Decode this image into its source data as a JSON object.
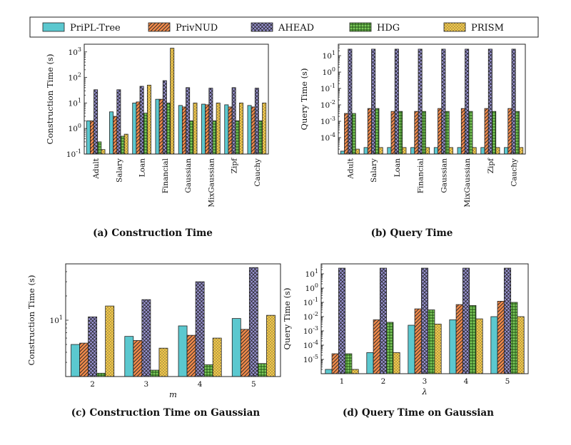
{
  "legend": [
    {
      "name": "PriPL-Tree",
      "color": "#5bc8cf",
      "pattern": "solid"
    },
    {
      "name": "PrivNUD",
      "color": "#f08a4b",
      "pattern": "diagonal"
    },
    {
      "name": "AHEAD",
      "color": "#9a94d4",
      "pattern": "cross"
    },
    {
      "name": "HDG",
      "color": "#7ccb5a",
      "pattern": "grid"
    },
    {
      "name": "PRISM",
      "color": "#f2c94c",
      "pattern": "dots"
    }
  ],
  "chart_data": [
    {
      "type": "bar",
      "caption": "(a) Construction Time",
      "ylabel": "Construction Time (s)",
      "xlabel": "",
      "yscale": "log",
      "ylim": [
        0.1,
        2000
      ],
      "yticks": [
        "10^-1",
        "10^0",
        "10^1",
        "10^2",
        "10^3"
      ],
      "categories": [
        "Adult",
        "Salary",
        "Loan",
        "Financial",
        "Gaussian",
        "MixGaussian",
        "Zipf",
        "Cauchy"
      ],
      "series": [
        {
          "name": "PriPL-Tree",
          "values": [
            2.0,
            4.5,
            10.0,
            14.0,
            8.0,
            9.0,
            8.5,
            8.0
          ]
        },
        {
          "name": "PrivNUD",
          "values": [
            2.0,
            3.0,
            11.0,
            14.0,
            7.0,
            8.5,
            7.0,
            7.0
          ]
        },
        {
          "name": "AHEAD",
          "values": [
            33,
            33,
            45,
            75,
            40,
            38,
            40,
            38
          ]
        },
        {
          "name": "HDG",
          "values": [
            0.3,
            0.5,
            4.0,
            10.0,
            2.0,
            2.0,
            2.0,
            2.0
          ]
        },
        {
          "name": "PRISM",
          "values": [
            0.15,
            0.6,
            50,
            1400,
            10,
            10,
            10,
            10
          ]
        }
      ]
    },
    {
      "type": "bar",
      "caption": "(b) Query Time",
      "ylabel": "Query Time (s)",
      "xlabel": "",
      "yscale": "log",
      "ylim": [
        1e-05,
        50
      ],
      "yticks": [
        "10^-4",
        "10^-3",
        "10^-2",
        "10^-1",
        "10^0",
        "10^1"
      ],
      "categories": [
        "Adult",
        "Salary",
        "Loan",
        "Financial",
        "Gaussian",
        "MixGaussian",
        "Zipf",
        "Cauchy"
      ],
      "series": [
        {
          "name": "PriPL-Tree",
          "values": [
            1.5e-05,
            2.5e-05,
            2.5e-05,
            2.5e-05,
            2.5e-05,
            2.5e-05,
            2.5e-05,
            2.5e-05
          ]
        },
        {
          "name": "PrivNUD",
          "values": [
            0.003,
            0.006,
            0.004,
            0.004,
            0.006,
            0.006,
            0.006,
            0.006
          ]
        },
        {
          "name": "AHEAD",
          "values": [
            25,
            25,
            25,
            25,
            25,
            25,
            25,
            25
          ]
        },
        {
          "name": "HDG",
          "values": [
            0.003,
            0.006,
            0.004,
            0.004,
            0.004,
            0.004,
            0.004,
            0.004
          ]
        },
        {
          "name": "PRISM",
          "values": [
            2e-05,
            2.5e-05,
            2.5e-05,
            2.5e-05,
            2.5e-05,
            2.5e-05,
            2.5e-05,
            2.5e-05
          ]
        }
      ]
    },
    {
      "type": "bar",
      "caption": "(c) Construction Time on Gaussian",
      "ylabel": "Construction Time (s)",
      "xlabel": "m",
      "yscale": "log",
      "ylim": [
        2.0,
        50
      ],
      "yticks": [
        "10^1"
      ],
      "categories": [
        "2",
        "3",
        "4",
        "5"
      ],
      "series": [
        {
          "name": "PriPL-Tree",
          "values": [
            5.0,
            6.3,
            8.5,
            10.5
          ]
        },
        {
          "name": "PrivNUD",
          "values": [
            5.2,
            5.6,
            6.5,
            7.7
          ]
        },
        {
          "name": "AHEAD",
          "values": [
            11.0,
            18.0,
            30.0,
            45.0
          ]
        },
        {
          "name": "HDG",
          "values": [
            2.2,
            2.4,
            2.8,
            2.9
          ]
        },
        {
          "name": "PRISM",
          "values": [
            15.0,
            4.5,
            6.0,
            11.5
          ]
        }
      ]
    },
    {
      "type": "bar",
      "caption": "(d) Query Time on Gaussian",
      "ylabel": "Query Time (s)",
      "xlabel": "λ",
      "yscale": "log",
      "ylim": [
        1e-06,
        50
      ],
      "yticks": [
        "10^-5",
        "10^-4",
        "10^-3",
        "10^-2",
        "10^-1",
        "10^0",
        "10^1"
      ],
      "categories": [
        "1",
        "2",
        "3",
        "4",
        "5"
      ],
      "series": [
        {
          "name": "PriPL-Tree",
          "values": [
            2e-06,
            3e-05,
            0.0025,
            0.006,
            0.01
          ]
        },
        {
          "name": "PrivNUD",
          "values": [
            2.5e-05,
            0.006,
            0.035,
            0.07,
            0.12
          ]
        },
        {
          "name": "AHEAD",
          "values": [
            25,
            25,
            25,
            25,
            25
          ]
        },
        {
          "name": "HDG",
          "values": [
            2.5e-05,
            0.004,
            0.03,
            0.06,
            0.1
          ]
        },
        {
          "name": "PRISM",
          "values": [
            2e-06,
            3e-05,
            0.003,
            0.007,
            0.01
          ]
        }
      ]
    }
  ]
}
